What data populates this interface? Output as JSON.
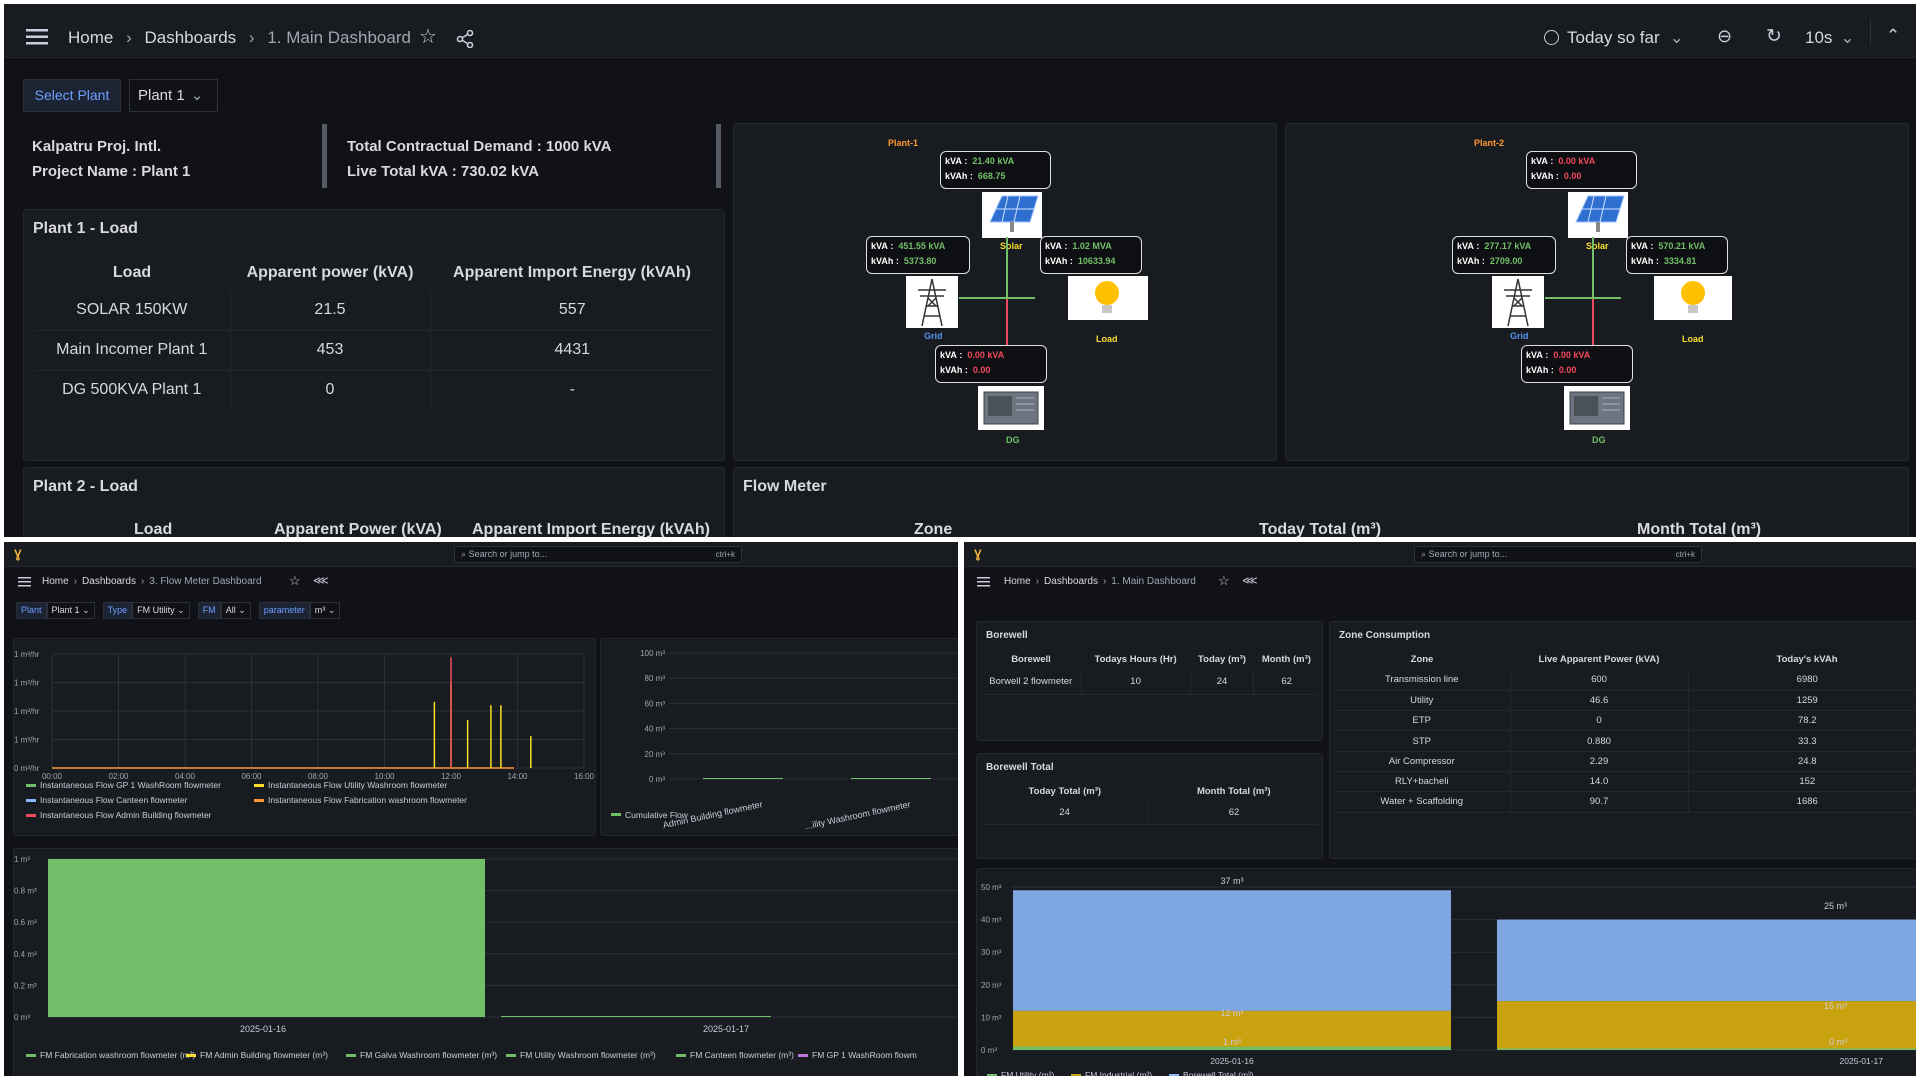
{
  "top": {
    "nav": {
      "home": "Home",
      "dashboards": "Dashboards",
      "current": "1. Main Dashboard"
    },
    "time": {
      "range": "Today so far",
      "refresh": "10s"
    },
    "vars": {
      "label": "Select Plant",
      "value": "Plant 1"
    },
    "info": {
      "company": "Kalpatru Proj. Intl.",
      "project": "Project Name : Plant 1",
      "demand": "Total Contractual Demand : 1000 kVA",
      "live": "Live Total kVA : 730.02 kVA"
    },
    "plant1_load": {
      "title": "Plant 1 - Load",
      "headers": [
        "Load",
        "Apparent power (kVA)",
        "Apparent Import Energy (kVAh)"
      ],
      "rows": [
        [
          "SOLAR 150KW",
          "21.5",
          "557"
        ],
        [
          "Main Incomer Plant 1",
          "453",
          "4431"
        ],
        [
          "DG 500KVA Plant 1",
          "0",
          "-"
        ]
      ]
    },
    "plant2_load": {
      "title": "Plant 2 - Load",
      "headers": [
        "Load",
        "Apparent Power (kVA)",
        "Apparent Import Energy (kVAh)"
      ]
    },
    "flow_meter": {
      "title": "Flow Meter",
      "headers": [
        "Zone",
        "Today Total (m³)",
        "Month Total (m³)"
      ]
    },
    "diagrams": [
      {
        "name": "Plant-1",
        "solar": {
          "kva": "21.40 kVA",
          "kvah": "668.75"
        },
        "grid": {
          "kva": "451.55 kVA",
          "kvah": "5373.80"
        },
        "load": {
          "kva": "1.02 MVA",
          "kvah": "10633.94"
        },
        "dg": {
          "kva": "0.00 kVA",
          "kvah": "0.00"
        }
      },
      {
        "name": "Plant-2",
        "solar": {
          "kva": "0.00 kVA",
          "kvah": "0.00"
        },
        "grid": {
          "kva": "277.17 kVA",
          "kvah": "2709.00"
        },
        "load": {
          "kva": "570.21 kVA",
          "kvah": "3334.81"
        },
        "dg": {
          "kva": "0.00 kVA",
          "kvah": "0.00"
        }
      }
    ],
    "diagram_labels": {
      "kva": "kVA",
      "kvah": "kVAh",
      "solar": "Solar",
      "grid": "Grid",
      "load": "Load",
      "dg": "DG"
    }
  },
  "bl": {
    "search": "Search or jump to...",
    "shortcut": "ctrl+k",
    "nav": {
      "home": "Home",
      "dashboards": "Dashboards",
      "current": "3. Flow Meter Dashboard"
    },
    "vars": [
      {
        "label": "Plant",
        "value": "Plant 1"
      },
      {
        "label": "Type",
        "value": "FM Utility"
      },
      {
        "label": "FM",
        "value": "All"
      },
      {
        "label": "parameter",
        "value": "m³"
      }
    ],
    "ts_yticks": [
      "1 m³/hr",
      "1 m³/hr",
      "1 m³/hr",
      "1 m³/hr",
      "0 m³/hr"
    ],
    "ts_xticks": [
      "00:00",
      "02:00",
      "04:00",
      "06:00",
      "08:00",
      "10:00",
      "12:00",
      "14:00",
      "16:00"
    ],
    "ts_legend": [
      {
        "name": "Instantaneous Flow GP 1 WashRoom flowmeter",
        "color": "#73bf69"
      },
      {
        "name": "Instantaneous Flow Utility Washroom flowmeter",
        "color": "#fade2a"
      },
      {
        "name": "Instantaneous Flow Canteen flowmeter",
        "color": "#8ab8ff"
      },
      {
        "name": "Instantaneous Flow Fabrication washroom flowmeter",
        "color": "#ff9830"
      },
      {
        "name": "Instantaneous Flow Admin Building flowmeter",
        "color": "#f2495c"
      }
    ],
    "bar_yticks": [
      "100 m³",
      "80 m³",
      "60 m³",
      "40 m³",
      "20 m³",
      "0 m³"
    ],
    "bar_xlabels": [
      "Admin Building flowmeter",
      "...ility Washroom flowmeter"
    ],
    "bar_legend": "Cumulative Flow",
    "big_yticks": [
      "1 m³",
      "0.8 m³",
      "0.6 m³",
      "0.4 m³",
      "0.2 m³",
      "0 m³"
    ],
    "big_xticks": [
      "2025-01-16",
      "2025-01-17"
    ],
    "big_legend": [
      {
        "name": "FM Fabrication washroom flowmeter (m³)",
        "color": "#73bf69"
      },
      {
        "name": "FM Admin Building flowmeter (m³)",
        "color": "#fade2a"
      },
      {
        "name": "FM Galva Washroom flowmeter (m³)",
        "color": "#73bf69"
      },
      {
        "name": "FM Utility Washroom flowmeter (m³)",
        "color": "#73bf69"
      },
      {
        "name": "FM Canteen flowmeter (m³)",
        "color": "#73bf69"
      },
      {
        "name": "FM GP 1 WashRoom flowm",
        "color": "#b877d9"
      }
    ]
  },
  "br": {
    "search": "Search or jump to...",
    "shortcut": "ctrl+k",
    "nav": {
      "home": "Home",
      "dashboards": "Dashboards",
      "current": "1. Main Dashboard"
    },
    "borewell": {
      "title": "Borewell",
      "headers": [
        "Borewell",
        "Todays Hours (Hr)",
        "Today (m³)",
        "Month (m³)"
      ],
      "rows": [
        [
          "Borwell 2 flowmeter",
          "10",
          "24",
          "62"
        ]
      ]
    },
    "borewell_total": {
      "title": "Borewell Total",
      "headers": [
        "Today Total (m³)",
        "Month Total (m³)"
      ],
      "rows": [
        [
          "24",
          "62"
        ]
      ]
    },
    "zone": {
      "title": "Zone Consumption",
      "headers": [
        "Zone",
        "Live Apparent Power (kVA)",
        "Today's kVAh"
      ],
      "rows": [
        [
          "Transmission line",
          "600",
          "6980"
        ],
        [
          "Utility",
          "46.6",
          "1259"
        ],
        [
          "ETP",
          "0",
          "78.2"
        ],
        [
          "STP",
          "0.880",
          "33.3"
        ],
        [
          "Air Compressor",
          "2.29",
          "24.8"
        ],
        [
          "RLY+bacheli",
          "14.0",
          "152"
        ],
        [
          "Water + Scaffolding",
          "90.7",
          "1686"
        ]
      ]
    },
    "yticks": [
      "50 m³",
      "40 m³",
      "30 m³",
      "20 m³",
      "10 m³",
      "0 m³"
    ],
    "xticks": [
      "2025-01-16",
      "2025-01-17"
    ],
    "bar_labels": [
      "37 m³",
      "12 m³",
      "1 m³",
      "25 m³",
      "15 m³",
      "0 m³"
    ],
    "legend": [
      {
        "name": "FM Utility (m³)",
        "color": "#73bf69"
      },
      {
        "name": "FM Industrial (m³)",
        "color": "#c8a30f"
      },
      {
        "name": "Borewell Total (m³)",
        "color": "#8ab8ff"
      }
    ]
  },
  "chart_data": [
    {
      "type": "line",
      "title": "",
      "x": [
        "00:00",
        "02:00",
        "04:00",
        "06:00",
        "08:00",
        "10:00",
        "12:00",
        "14:00",
        "16:00"
      ],
      "series": [
        {
          "name": "Instantaneous Flow Utility Washroom flowmeter",
          "spikes_x_hours": [
            11.5,
            12.0,
            12.5,
            13.2,
            13.5,
            14.4
          ],
          "spikes_y_rel": [
            0.58,
            0.75,
            0.42,
            0.55,
            0.55,
            0.28
          ]
        },
        {
          "name": "Instantaneous Flow Admin Building flowmeter",
          "spikes_x_hours": [
            12.0
          ],
          "spikes_y_rel": [
            0.97
          ]
        }
      ]
    },
    {
      "type": "bar",
      "categories": [
        "Admin Building flowmeter",
        "...ility Washroom flowmeter"
      ],
      "series": [
        {
          "name": "Cumulative Flow",
          "values": [
            0,
            0
          ]
        }
      ],
      "ylim": [
        0,
        100
      ]
    },
    {
      "type": "bar",
      "categories": [
        "2025-01-16",
        "2025-01-17"
      ],
      "series": [
        {
          "name": "FM Fabrication washroom flowmeter (m³)",
          "values": [
            1,
            0
          ]
        }
      ],
      "ylim": [
        0,
        1
      ]
    },
    {
      "type": "bar",
      "stacked": true,
      "categories": [
        "2025-01-16",
        "2025-01-17"
      ],
      "series": [
        {
          "name": "FM Utility (m³)",
          "values": [
            1,
            0
          ]
        },
        {
          "name": "FM Industrial (m³)",
          "values": [
            12,
            15
          ]
        },
        {
          "name": "Borewell Total (m³)",
          "values": [
            37,
            25
          ]
        }
      ],
      "ylim": [
        0,
        50
      ]
    }
  ]
}
